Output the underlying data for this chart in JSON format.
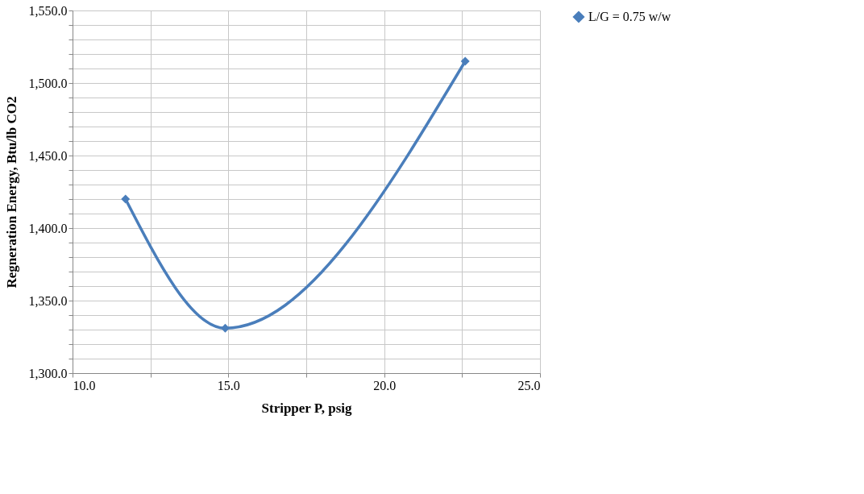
{
  "chart_data": {
    "type": "line",
    "xlabel": "Stripper P, psig",
    "ylabel": "Regneration Energy, Btu/lb CO2",
    "x": [
      11.7,
      14.9,
      22.6
    ],
    "series": [
      {
        "name": "L/G = 0.75 w/w",
        "color": "#4a7ebb",
        "values": [
          1420,
          1331,
          1515
        ]
      }
    ],
    "xlim": [
      10,
      25
    ],
    "xticks": [
      {
        "value": 10,
        "label": "10.0"
      },
      {
        "value": 12.5,
        "label": null
      },
      {
        "value": 15,
        "label": "15.0"
      },
      {
        "value": 17.5,
        "label": null
      },
      {
        "value": 20,
        "label": "20.0"
      },
      {
        "value": 22.5,
        "label": null
      },
      {
        "value": 25,
        "label": "25.0"
      }
    ],
    "ylim": [
      1300,
      1550
    ],
    "yticks": [
      {
        "value": 1300,
        "label": "1,300.0"
      },
      {
        "value": 1310,
        "label": null
      },
      {
        "value": 1320,
        "label": null
      },
      {
        "value": 1330,
        "label": null
      },
      {
        "value": 1340,
        "label": null
      },
      {
        "value": 1350,
        "label": "1,350.0"
      },
      {
        "value": 1360,
        "label": null
      },
      {
        "value": 1370,
        "label": null
      },
      {
        "value": 1380,
        "label": null
      },
      {
        "value": 1390,
        "label": null
      },
      {
        "value": 1400,
        "label": "1,400.0"
      },
      {
        "value": 1410,
        "label": null
      },
      {
        "value": 1420,
        "label": null
      },
      {
        "value": 1430,
        "label": null
      },
      {
        "value": 1440,
        "label": null
      },
      {
        "value": 1450,
        "label": "1,450.0"
      },
      {
        "value": 1460,
        "label": null
      },
      {
        "value": 1470,
        "label": null
      },
      {
        "value": 1480,
        "label": null
      },
      {
        "value": 1490,
        "label": null
      },
      {
        "value": 1500,
        "label": "1,500.0"
      },
      {
        "value": 1510,
        "label": null
      },
      {
        "value": 1520,
        "label": null
      },
      {
        "value": 1530,
        "label": null
      },
      {
        "value": 1540,
        "label": null
      },
      {
        "value": 1550,
        "label": "1,550.0"
      }
    ],
    "grid": true,
    "legend": "right",
    "marker": "diamond",
    "line_style": "solid"
  }
}
